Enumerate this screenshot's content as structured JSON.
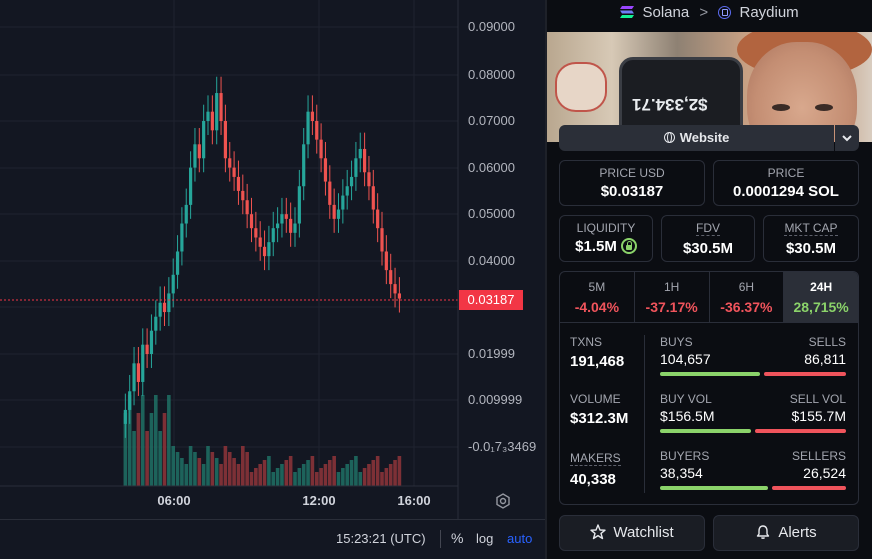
{
  "chart": {
    "y_ticks": [
      "0.09000",
      "0.08000",
      "0.07000",
      "0.06000",
      "0.05000",
      "0.04000",
      "0.01999",
      "0.009999",
      "-0.0₁7₃3469"
    ],
    "x_ticks": [
      "06:00",
      "12:00",
      "16:00"
    ],
    "current_price": "0.03187",
    "time_display": "15:23:21 (UTC)",
    "percent_label": "%",
    "log_label": "log",
    "auto_label": "auto"
  },
  "colors": {
    "up": "#26a69a",
    "down": "#ef5350",
    "accent": "#2962ff",
    "price_line": "#f23645"
  },
  "header": {
    "chain": "Solana",
    "dex": "Raydium"
  },
  "token_image": {
    "phone_text": "$2,334.71"
  },
  "website_button": {
    "label": "Website"
  },
  "price_usd": {
    "label": "PRICE USD",
    "value": "$0.03187"
  },
  "price_sol": {
    "label": "PRICE",
    "value": "0.0001294 SOL"
  },
  "liquidity": {
    "label": "LIQUIDITY",
    "value": "$1.5M"
  },
  "fdv": {
    "label": "FDV",
    "value": "$30.5M"
  },
  "mkt_cap": {
    "label": "MKT CAP",
    "value": "$30.5M"
  },
  "timeframes": [
    {
      "label": "5M",
      "change": "-4.04%",
      "trend": "neg"
    },
    {
      "label": "1H",
      "change": "-37.17%",
      "trend": "neg"
    },
    {
      "label": "6H",
      "change": "-36.37%",
      "trend": "neg"
    },
    {
      "label": "24H",
      "change": "28,715%",
      "trend": "pos",
      "active": true
    }
  ],
  "stats": {
    "txns": {
      "label": "TXNS",
      "value": "191,468"
    },
    "volume": {
      "label": "VOLUME",
      "value": "$312.3M"
    },
    "makers": {
      "label": "MAKERS",
      "value": "40,338"
    },
    "buys": {
      "label": "BUYS",
      "value": "104,657",
      "share": 0.547
    },
    "sells": {
      "label": "SELLS",
      "value": "86,811",
      "share": 0.453
    },
    "buy_vol": {
      "label": "BUY VOL",
      "value": "$156.5M",
      "share": 0.501
    },
    "sell_vol": {
      "label": "SELL VOL",
      "value": "$155.7M",
      "share": 0.499
    },
    "buyers": {
      "label": "BUYERS",
      "value": "38,354",
      "share": 0.591
    },
    "sellers": {
      "label": "SELLERS",
      "value": "26,524",
      "share": 0.409
    }
  },
  "watchlist_button": {
    "label": "Watchlist",
    "icon": "star-icon"
  },
  "alerts_button": {
    "label": "Alerts",
    "icon": "bell-icon"
  }
}
